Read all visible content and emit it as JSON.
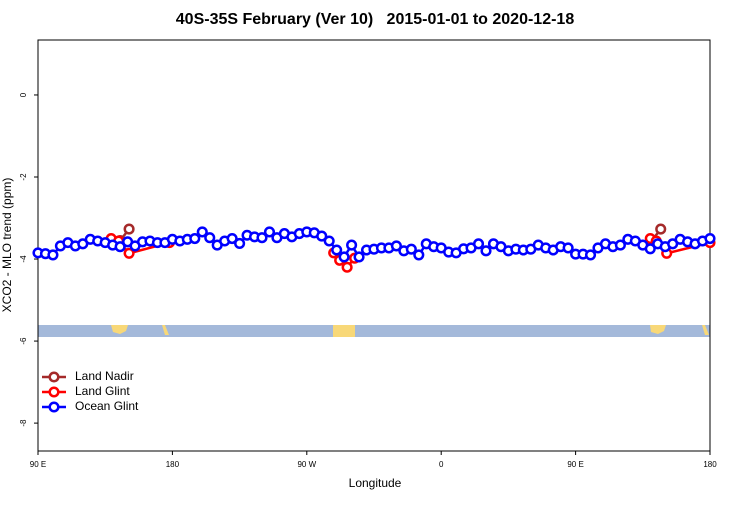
{
  "chart_data": {
    "type": "line",
    "title": "40S-35S February (Ver 10)   2015-01-01 to 2020-12-18",
    "x_label": "Longitude",
    "y_label": "XCO2 - MLO trend (ppm)",
    "xlim": [
      90,
      540
    ],
    "xticks": [
      {
        "value": 90,
        "label": "90 E"
      },
      {
        "value": 180,
        "label": "180"
      },
      {
        "value": 270,
        "label": "90 W"
      },
      {
        "value": 360,
        "label": "0"
      },
      {
        "value": 450,
        "label": "90 E"
      },
      {
        "value": 540,
        "label": "180"
      }
    ],
    "ylim": [
      -8.68,
      1.34
    ],
    "yticks": [
      0,
      -2,
      -4,
      -6,
      -8
    ],
    "legend": "bottomleft",
    "series": [
      {
        "name": "Land Nadir",
        "color": "#a52a2a",
        "x": [
          145,
          151,
          300,
          501,
          507
        ],
        "values": [
          -3.55,
          -3.27,
          null,
          -3.55,
          -3.27
        ]
      },
      {
        "name": "Land Glint",
        "color": "#ff0000",
        "x": [
          139,
          144,
          151,
          178,
          220,
          288,
          292,
          297,
          302,
          400,
          500,
          504,
          511,
          540
        ],
        "values": [
          -3.5,
          -3.56,
          -3.86,
          -3.6,
          null,
          -3.85,
          -4.03,
          -4.2,
          -3.98,
          null,
          -3.5,
          -3.56,
          -3.86,
          -3.6
        ]
      },
      {
        "name": "Ocean Glint",
        "color": "#0000ff",
        "x": [
          90,
          95,
          100,
          105,
          110,
          115,
          120,
          125,
          130,
          135,
          140,
          145,
          150,
          155,
          160,
          165,
          170,
          175,
          180,
          185,
          190,
          195,
          200,
          205,
          210,
          215,
          220,
          225,
          230,
          235,
          240,
          245,
          250,
          255,
          260,
          265,
          270,
          275,
          280,
          285,
          290,
          295,
          300,
          305,
          310,
          315,
          320,
          325,
          330,
          335,
          340,
          345,
          350,
          355,
          360,
          365,
          370,
          375,
          380,
          385,
          390,
          395,
          400,
          405,
          410,
          415,
          420,
          425,
          430,
          435,
          440,
          445,
          450,
          455,
          460,
          465,
          470,
          475,
          480,
          485,
          490,
          495,
          500,
          505,
          510,
          515,
          520,
          525,
          530,
          535,
          540
        ],
        "values": [
          -3.85,
          -3.87,
          -3.9,
          -3.68,
          -3.6,
          -3.68,
          -3.63,
          -3.52,
          -3.56,
          -3.6,
          -3.66,
          -3.7,
          -3.58,
          -3.68,
          -3.58,
          -3.56,
          -3.6,
          -3.6,
          -3.52,
          -3.56,
          -3.52,
          -3.5,
          -3.34,
          -3.48,
          -3.66,
          -3.56,
          -3.5,
          -3.62,
          -3.42,
          -3.46,
          -3.48,
          -3.34,
          -3.48,
          -3.38,
          -3.46,
          -3.38,
          -3.34,
          -3.36,
          -3.44,
          -3.56,
          -3.78,
          -3.95,
          -3.66,
          -3.95,
          -3.78,
          -3.76,
          -3.73,
          -3.73,
          -3.68,
          -3.8,
          -3.76,
          -3.9,
          -3.63,
          -3.7,
          -3.73,
          -3.83,
          -3.85,
          -3.75,
          -3.73,
          -3.63,
          -3.8,
          -3.63,
          -3.7,
          -3.8,
          -3.76,
          -3.78,
          -3.76,
          -3.66,
          -3.73,
          -3.78,
          -3.7,
          -3.73,
          -3.88,
          -3.88,
          -3.9,
          -3.73,
          -3.63,
          -3.7,
          -3.66,
          -3.52,
          -3.56,
          -3.66,
          -3.75,
          -3.63,
          -3.7,
          -3.63,
          -3.52,
          -3.58,
          -3.63,
          -3.56,
          -3.5
        ]
      }
    ]
  }
}
